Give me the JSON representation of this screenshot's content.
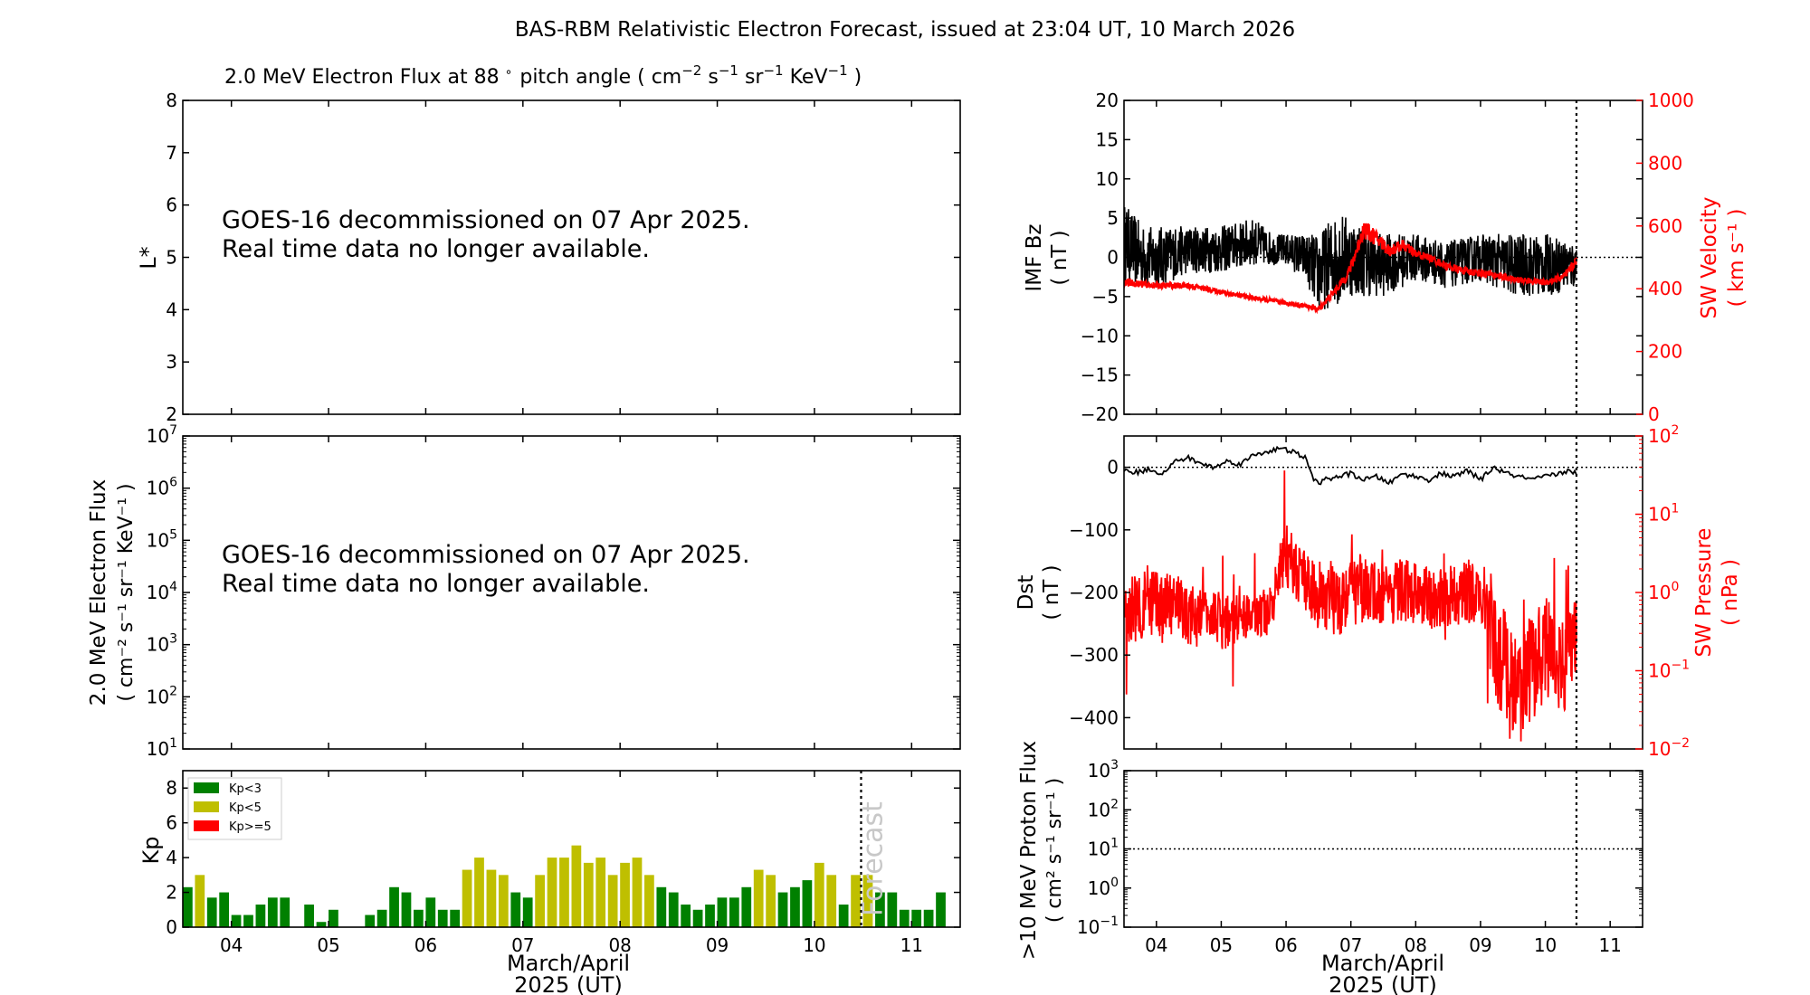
{
  "figure": {
    "title": "BAS-RBM Relativistic Electron Forecast, issued at 23:04 UT, 10 March 2026"
  },
  "colors": {
    "kp_low": "#008000",
    "kp_mid": "#bfbf00",
    "kp_high": "#ff0000",
    "sw": "#ff0000",
    "main": "#000000"
  },
  "chart_data": [
    {
      "id": "flux_lstar",
      "type": "heatmap",
      "title": "2.0 MeV Electron Flux at 88",
      "title_degree": "∘",
      "title_units_open": "pitch angle ( cm",
      "title_exp1": "−2",
      "title_s": " s",
      "title_exp2": "−1",
      "title_sr": " sr",
      "title_exp3": "−1",
      "title_kev": " KeV",
      "title_exp4": "−1",
      "title_close": " )",
      "ylabel": "L*",
      "ylim": [
        2,
        8
      ],
      "yticks": [
        "2",
        "3",
        "4",
        "5",
        "6",
        "7",
        "8"
      ],
      "message_line1": "GOES-16 decommissioned on 07 Apr 2025.",
      "message_line2": "Real time data no longer available."
    },
    {
      "id": "flux_geo",
      "type": "line",
      "ylabel_line1": "2.0 MeV Electron Flux",
      "ylabel_line2": "( cm⁻² s⁻¹ sr⁻¹ KeV⁻¹ )",
      "ylim": [
        10.0,
        10000000.0
      ],
      "yscale": "log",
      "yticks": [
        {
          "base": "10",
          "exp": "1"
        },
        {
          "base": "10",
          "exp": "2"
        },
        {
          "base": "10",
          "exp": "3"
        },
        {
          "base": "10",
          "exp": "4"
        },
        {
          "base": "10",
          "exp": "5"
        },
        {
          "base": "10",
          "exp": "6"
        },
        {
          "base": "10",
          "exp": "7"
        }
      ],
      "message_line1": "GOES-16 decommissioned on 07 Apr 2025.",
      "message_line2": "Real time data no longer available."
    },
    {
      "id": "kp",
      "type": "bar",
      "ylabel": "Kp",
      "ylim": [
        0,
        9
      ],
      "yticks": [
        "0",
        "2",
        "4",
        "6",
        "8"
      ],
      "xlim": [
        3.5,
        11.5
      ],
      "xticks": [
        "04",
        "05",
        "06",
        "07",
        "08",
        "09",
        "10",
        "11"
      ],
      "xlabel_line1": "March/April",
      "xlabel_line2": "2025 (UT)",
      "forecast_label": "Forecast",
      "forecast_at": 10.48,
      "legend": [
        "Kp<3",
        "Kp<5",
        "Kp>=5"
      ],
      "legend_position": "top-left",
      "bar_width_days": 0.1,
      "values": [
        2.3,
        3.0,
        1.7,
        2.0,
        0.7,
        0.7,
        1.3,
        1.7,
        1.7,
        0,
        1.3,
        0.3,
        1.0,
        0,
        0,
        0.7,
        1.0,
        2.3,
        2.0,
        1.0,
        1.7,
        1.0,
        1.0,
        3.3,
        4.0,
        3.3,
        3.0,
        2.0,
        1.7,
        3.0,
        4.0,
        4.0,
        4.7,
        3.7,
        4.0,
        3.0,
        3.7,
        4.0,
        3.0,
        2.3,
        2.0,
        1.3,
        1.0,
        1.3,
        1.7,
        1.7,
        2.3,
        3.3,
        3.0,
        2.0,
        2.3,
        2.7,
        3.7,
        3.0,
        1.3,
        3.0,
        3.0,
        2.0,
        2.0,
        1.0,
        1.0,
        1.0,
        2.0
      ],
      "start": 3.55,
      "step": 0.125
    },
    {
      "id": "imf_sw",
      "type": "line",
      "ylabel_line1": "IMF Bz",
      "ylabel_line2": "( nT )",
      "ylim": [
        -20,
        20
      ],
      "yticks": [
        "−20",
        "−15",
        "−10",
        "−5",
        "0",
        "5",
        "10",
        "15",
        "20"
      ],
      "y2label_line1": "SW Velocity",
      "y2label_line2": "( km s⁻¹ )",
      "y2lim": [
        0,
        1000
      ],
      "y2ticks": [
        "0",
        "200",
        "400",
        "600",
        "800",
        "1000"
      ],
      "xlim": [
        3.5,
        11.5
      ],
      "now_at": 10.48,
      "series": [
        {
          "name": "IMF Bz",
          "axis": "left",
          "x": [
            3.5,
            3.8,
            4.0,
            4.5,
            5.0,
            5.5,
            5.8,
            6.0,
            6.3,
            6.5,
            6.8,
            7.0,
            7.5,
            8.0,
            8.5,
            9.0,
            9.5,
            10.0,
            10.48
          ],
          "y": [
            2,
            0,
            0,
            1,
            1,
            2,
            1,
            1,
            0,
            -2,
            0,
            0,
            -1,
            0,
            -1,
            0,
            -1,
            -1,
            -1
          ],
          "amplitude": [
            5,
            4,
            4,
            3,
            3,
            3,
            2,
            2,
            3,
            5,
            6,
            5,
            4,
            3,
            3,
            3,
            4,
            4,
            3
          ]
        },
        {
          "name": "SW Velocity",
          "axis": "right",
          "x": [
            3.5,
            4.0,
            4.5,
            5.0,
            5.5,
            6.0,
            6.3,
            6.5,
            6.7,
            6.9,
            7.0,
            7.2,
            7.4,
            7.6,
            7.8,
            8.0,
            8.2,
            8.5,
            8.8,
            9.0,
            9.3,
            9.5,
            10.0,
            10.3,
            10.48
          ],
          "y": [
            420,
            410,
            410,
            390,
            370,
            355,
            345,
            335,
            380,
            430,
            470,
            590,
            560,
            520,
            540,
            510,
            500,
            470,
            455,
            450,
            440,
            430,
            420,
            440,
            490
          ],
          "amplitude": [
            12,
            10,
            10,
            8,
            8,
            8,
            8,
            10,
            12,
            15,
            18,
            30,
            25,
            20,
            18,
            15,
            12,
            12,
            12,
            12,
            12,
            10,
            10,
            15,
            15
          ]
        }
      ]
    },
    {
      "id": "dst_pressure",
      "type": "line",
      "ylabel_line1": "Dst",
      "ylabel_line2": "( nT )",
      "ylim": [
        -450,
        50
      ],
      "yticks": [
        "−400",
        "−300",
        "−200",
        "−100",
        "0"
      ],
      "y2label_line1": "SW Pressure",
      "y2label_line2": "( nPa )",
      "y2lim": [
        0.01,
        100
      ],
      "y2scale": "log",
      "y2ticks": [
        {
          "base": "10",
          "exp": "−2"
        },
        {
          "base": "10",
          "exp": "−1"
        },
        {
          "base": "10",
          "exp": "0"
        },
        {
          "base": "10",
          "exp": "1"
        },
        {
          "base": "10",
          "exp": "2"
        }
      ],
      "xlim": [
        3.5,
        11.5
      ],
      "now_at": 10.48,
      "series": [
        {
          "name": "Dst",
          "axis": "left",
          "x": [
            3.5,
            3.7,
            3.9,
            4.1,
            4.3,
            4.5,
            4.7,
            4.9,
            5.1,
            5.3,
            5.5,
            5.7,
            5.9,
            6.1,
            6.3,
            6.4,
            6.5,
            6.6,
            6.8,
            7.0,
            7.2,
            7.4,
            7.6,
            7.8,
            8.0,
            8.2,
            8.4,
            8.6,
            8.8,
            9.0,
            9.2,
            9.4,
            9.6,
            9.8,
            10.0,
            10.2,
            10.4,
            10.48
          ],
          "y": [
            -5,
            -8,
            -3,
            -10,
            10,
            15,
            5,
            0,
            10,
            5,
            20,
            25,
            30,
            25,
            15,
            -15,
            -25,
            -20,
            -15,
            -10,
            -20,
            -15,
            -25,
            -10,
            -15,
            -20,
            -10,
            -15,
            -5,
            -20,
            0,
            -10,
            -15,
            -20,
            -15,
            -10,
            -5,
            -10
          ]
        },
        {
          "name": "SW Pressure",
          "axis": "right",
          "x": [
            3.5,
            3.8,
            4.0,
            4.3,
            4.5,
            4.8,
            5.0,
            5.3,
            5.5,
            5.8,
            6.0,
            6.2,
            6.5,
            6.8,
            7.0,
            7.3,
            7.5,
            7.8,
            8.0,
            8.3,
            8.5,
            8.8,
            9.0,
            9.2,
            9.5,
            9.8,
            10.0,
            10.3,
            10.48
          ],
          "y": [
            0.5,
            0.8,
            0.6,
            0.7,
            0.5,
            0.6,
            0.4,
            0.5,
            0.5,
            0.6,
            3.0,
            1.5,
            1.0,
            0.8,
            1.2,
            1.0,
            0.9,
            1.1,
            1.0,
            0.8,
            0.9,
            1.0,
            0.9,
            0.2,
            0.05,
            0.1,
            0.2,
            0.1,
            0.3
          ],
          "amplitude": [
            0.4,
            0.5,
            0.5,
            0.4,
            0.4,
            0.3,
            0.4,
            0.3,
            0.3,
            0.3,
            0.4,
            0.4,
            0.4,
            0.5,
            0.5,
            0.4,
            0.4,
            0.4,
            0.4,
            0.4,
            0.4,
            0.4,
            0.4,
            0.7,
            0.8,
            0.7,
            0.7,
            0.6,
            0.5
          ]
        }
      ]
    },
    {
      "id": "proton",
      "type": "line",
      "ylabel_line1": ">10 MeV Proton Flux",
      "ylabel_line2": "( cm² s⁻¹ sr⁻¹ )",
      "ylim": [
        0.1,
        1000
      ],
      "yscale": "log",
      "yticks": [
        {
          "base": "10",
          "exp": "−1"
        },
        {
          "base": "10",
          "exp": "0"
        },
        {
          "base": "10",
          "exp": "1"
        },
        {
          "base": "10",
          "exp": "2"
        },
        {
          "base": "10",
          "exp": "3"
        }
      ],
      "threshold": 10,
      "xlim": [
        3.5,
        11.5
      ],
      "xticks": [
        "04",
        "05",
        "06",
        "07",
        "08",
        "09",
        "10",
        "11"
      ],
      "xlabel_line1": "March/April",
      "xlabel_line2": "2025 (UT)",
      "now_at": 10.48
    }
  ]
}
